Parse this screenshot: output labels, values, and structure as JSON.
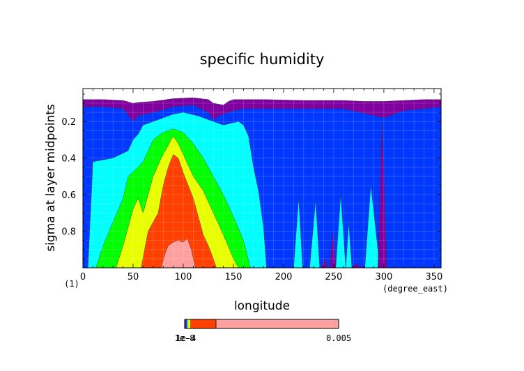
{
  "chart_data": {
    "type": "area",
    "title": "specific humidity",
    "xlabel": "longitude",
    "ylabel": "sigma at layer midpoints",
    "x_unit": "(degree_east)",
    "y_unit": "(1)",
    "xlim": [
      0,
      357
    ],
    "ylim": [
      1.0,
      0.02
    ],
    "y_axis_inverted": true,
    "grid": true,
    "x_ticks": [
      0,
      50,
      100,
      150,
      200,
      250,
      300,
      350
    ],
    "y_ticks": [
      0.2,
      0.4,
      0.6,
      0.8
    ],
    "x_tick_labels": [
      "0",
      "50",
      "100",
      "150",
      "200",
      "250",
      "300",
      "350"
    ],
    "y_tick_labels": [
      "0.2",
      "0.4",
      "0.6",
      "0.8"
    ],
    "colorbar": {
      "min_label": "1e-8",
      "mid_label": "1e-4",
      "max_label": "0.005",
      "colors": [
        "#8000a0",
        "#0038ff",
        "#00ffff",
        "#00ff00",
        "#e8ff00",
        "#ff4000",
        "#ffa0a0"
      ]
    },
    "series": [
      {
        "level": 1,
        "color": "#8000a0",
        "x": [
          0,
          20,
          40,
          50,
          55,
          70,
          90,
          110,
          125,
          130,
          140,
          145,
          150,
          160,
          180,
          220,
          260,
          280,
          300,
          320,
          340,
          357
        ],
        "top": [
          0.08,
          0.08,
          0.085,
          0.1,
          0.095,
          0.09,
          0.075,
          0.07,
          0.08,
          0.1,
          0.11,
          0.09,
          0.08,
          0.08,
          0.08,
          0.085,
          0.085,
          0.09,
          0.09,
          0.085,
          0.08,
          0.08
        ]
      },
      {
        "level": 2,
        "color": "#0038ff",
        "x": [
          0,
          20,
          40,
          50,
          55,
          70,
          90,
          110,
          125,
          130,
          135,
          145,
          150,
          160,
          180,
          220,
          260,
          300,
          320,
          340,
          357
        ],
        "top": [
          0.12,
          0.12,
          0.13,
          0.2,
          0.17,
          0.15,
          0.12,
          0.11,
          0.15,
          0.19,
          0.17,
          0.15,
          0.14,
          0.13,
          0.13,
          0.13,
          0.13,
          0.18,
          0.14,
          0.13,
          0.12
        ]
      },
      {
        "level": 3,
        "color": "#00ffff",
        "x": [
          5,
          10,
          30,
          45,
          50,
          55,
          60,
          70,
          80,
          90,
          100,
          115,
          125,
          140,
          155,
          160,
          165,
          170,
          175,
          180,
          183
        ],
        "top": [
          1.0,
          0.42,
          0.4,
          0.36,
          0.3,
          0.27,
          0.22,
          0.2,
          0.18,
          0.16,
          0.15,
          0.17,
          0.19,
          0.22,
          0.2,
          0.22,
          0.28,
          0.45,
          0.58,
          0.78,
          1.0
        ]
      },
      {
        "level": 4,
        "color": "#00ff00",
        "x": [
          13,
          20,
          30,
          40,
          45,
          55,
          60,
          70,
          80,
          90,
          100,
          110,
          120,
          130,
          140,
          150,
          160,
          167
        ],
        "top": [
          1.0,
          0.88,
          0.75,
          0.62,
          0.5,
          0.45,
          0.42,
          0.3,
          0.26,
          0.24,
          0.26,
          0.32,
          0.4,
          0.5,
          0.6,
          0.72,
          0.85,
          1.0
        ]
      },
      {
        "level": 5,
        "color": "#e8ff00",
        "x": [
          33,
          40,
          50,
          55,
          60,
          70,
          78,
          85,
          90,
          95,
          100,
          110,
          120,
          130,
          140,
          150,
          155
        ],
        "top": [
          1.0,
          0.88,
          0.68,
          0.62,
          0.7,
          0.5,
          0.4,
          0.33,
          0.28,
          0.32,
          0.38,
          0.5,
          0.58,
          0.7,
          0.82,
          0.95,
          1.0
        ]
      },
      {
        "level": 6,
        "color": "#ff4000",
        "x": [
          58,
          65,
          75,
          80,
          85,
          90,
          95,
          100,
          105,
          110,
          115,
          120,
          125,
          130,
          133
        ],
        "top": [
          1.0,
          0.8,
          0.7,
          0.55,
          0.45,
          0.38,
          0.4,
          0.48,
          0.55,
          0.62,
          0.72,
          0.82,
          0.88,
          0.95,
          1.0
        ]
      },
      {
        "level": 7,
        "color": "#ffa0a0",
        "x": [
          78,
          82,
          85,
          90,
          95,
          100,
          104,
          108,
          112
        ],
        "top": [
          1.0,
          0.92,
          0.88,
          0.86,
          0.85,
          0.86,
          0.84,
          0.9,
          1.0
        ]
      }
    ],
    "cyan_spikes": [
      {
        "x0": 210,
        "xp": 215,
        "x1": 219,
        "top": 0.62
      },
      {
        "x0": 226,
        "xp": 232,
        "x1": 236,
        "top": 0.63
      },
      {
        "x0": 252,
        "xp": 257,
        "x1": 262,
        "top": 0.6
      },
      {
        "x0": 262,
        "xp": 265,
        "x1": 268,
        "top": 0.75
      },
      {
        "x0": 281,
        "xp": 287,
        "x1": 296,
        "top": 0.55
      }
    ],
    "purple_spikes": [
      {
        "x0": 238,
        "xp": 241,
        "x1": 244,
        "top": 0.95
      },
      {
        "x0": 246,
        "xp": 249,
        "x1": 252,
        "top": 0.8
      },
      {
        "x0": 268,
        "xp": 273,
        "x1": 278,
        "top": 0.98
      },
      {
        "x0": 294,
        "xp": 298,
        "x1": 303,
        "top": 0.2
      }
    ]
  }
}
